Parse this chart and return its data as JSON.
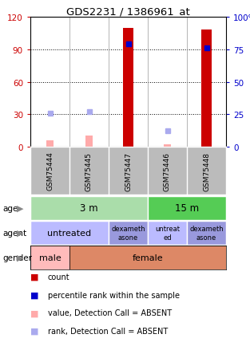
{
  "title": "GDS2231 / 1386961_at",
  "samples": [
    "GSM75444",
    "GSM75445",
    "GSM75447",
    "GSM75446",
    "GSM75448"
  ],
  "left_ylim": [
    0,
    120
  ],
  "right_ylim": [
    0,
    100
  ],
  "left_yticks": [
    0,
    30,
    60,
    90,
    120
  ],
  "right_yticks": [
    0,
    25,
    50,
    75,
    100
  ],
  "left_yticklabels": [
    "0",
    "30",
    "60",
    "90",
    "120"
  ],
  "right_yticklabels": [
    "0",
    "25",
    "50",
    "75",
    "100%"
  ],
  "count_bars": [
    null,
    null,
    110,
    null,
    108
  ],
  "percentile_rank_bars": [
    null,
    null,
    79,
    null,
    76
  ],
  "value_absent_bars": [
    6,
    10,
    null,
    2,
    null
  ],
  "rank_absent_bars": [
    26,
    27,
    null,
    12,
    null
  ],
  "count_color": "#cc0000",
  "percentile_color": "#0000cc",
  "value_absent_color": "#ffaaaa",
  "rank_absent_color": "#aaaaee",
  "age_colors": {
    "3m": "#aaddaa",
    "15m": "#55cc55"
  },
  "agent_colors": {
    "untreated": "#bbbbff",
    "dexamethasone": "#9999dd"
  },
  "gender_colors": {
    "male": "#ffbbbb",
    "female": "#dd8866"
  },
  "sample_bg_color": "#bbbbbb",
  "legend_items": [
    {
      "color": "#cc0000",
      "label": "count"
    },
    {
      "color": "#0000cc",
      "label": "percentile rank within the sample"
    },
    {
      "color": "#ffaaaa",
      "label": "value, Detection Call = ABSENT"
    },
    {
      "color": "#aaaaee",
      "label": "rank, Detection Call = ABSENT"
    }
  ],
  "bg_color": "#ffffff"
}
